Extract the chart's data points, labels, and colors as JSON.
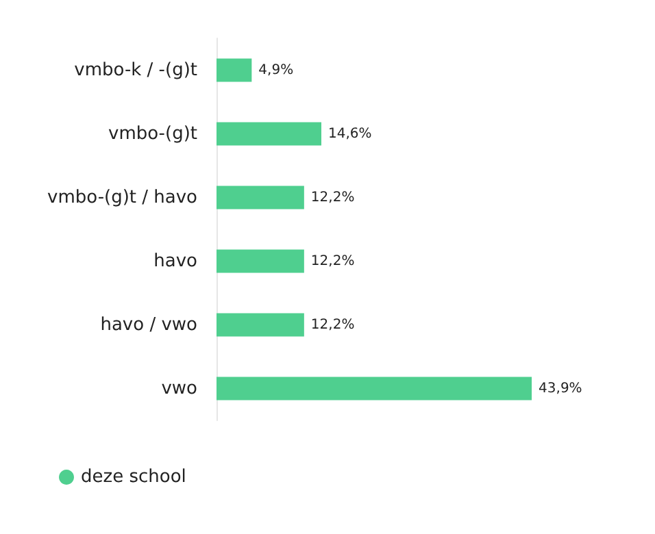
{
  "chart_data": {
    "type": "bar",
    "orientation": "horizontal",
    "categories": [
      "vmbo-k / -(g)t",
      "vmbo-(g)t",
      "vmbo-(g)t / havo",
      "havo",
      "havo / vwo",
      "vwo"
    ],
    "series": [
      {
        "name": "deze school",
        "color": "#4fcf8f",
        "values": [
          4.9,
          14.6,
          12.2,
          12.2,
          12.2,
          43.9
        ],
        "value_labels": [
          "4,9%",
          "14,6%",
          "12,2%",
          "12,2%",
          "12,2%",
          "43,9%"
        ]
      }
    ],
    "legend": "bottom left",
    "grid": false,
    "tick_labels": "y"
  }
}
